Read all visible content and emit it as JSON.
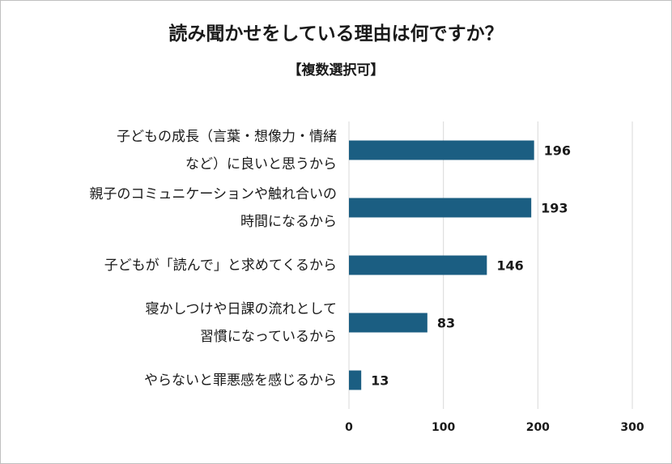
{
  "chart_data": {
    "type": "bar",
    "orientation": "horizontal",
    "title": "読み聞かせをしている理由は何ですか？",
    "subtitle": "【複数選択可】",
    "categories": [
      [
        "子どもの成長（言葉・想像力・情緒",
        "など）に良いと思うから"
      ],
      [
        "親子のコミュニケーションや触れ合いの",
        "時間になるから"
      ],
      [
        "子どもが「読んで」と求めてくるから"
      ],
      [
        "寝かしつけや日課の流れとして",
        "習慣になっているから"
      ],
      [
        "やらないと罪悪感を感じるから"
      ]
    ],
    "values": [
      196,
      193,
      146,
      83,
      13
    ],
    "xlim": [
      0,
      300
    ],
    "xticks": [
      0,
      100,
      200,
      300
    ],
    "grid": true,
    "bar_color": "#1b5e82",
    "grid_color": "#d9d9d9"
  }
}
